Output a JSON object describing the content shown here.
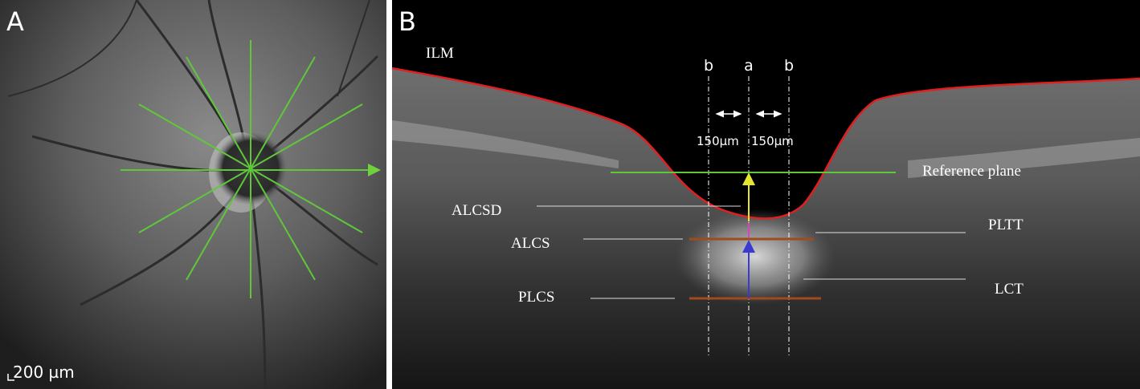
{
  "panel_a": {
    "label": "A",
    "scale_bar": "200 µm"
  },
  "panel_b": {
    "label": "B",
    "ilm": "ILM",
    "positions": [
      "b",
      "a",
      "b"
    ],
    "distances": [
      "150µm",
      "150µm"
    ],
    "reference_plane": "Reference plane",
    "left_labels": [
      "ALCSD",
      "ALCS",
      "PLCS"
    ],
    "right_labels": [
      "PLTT",
      "LCT"
    ]
  }
}
